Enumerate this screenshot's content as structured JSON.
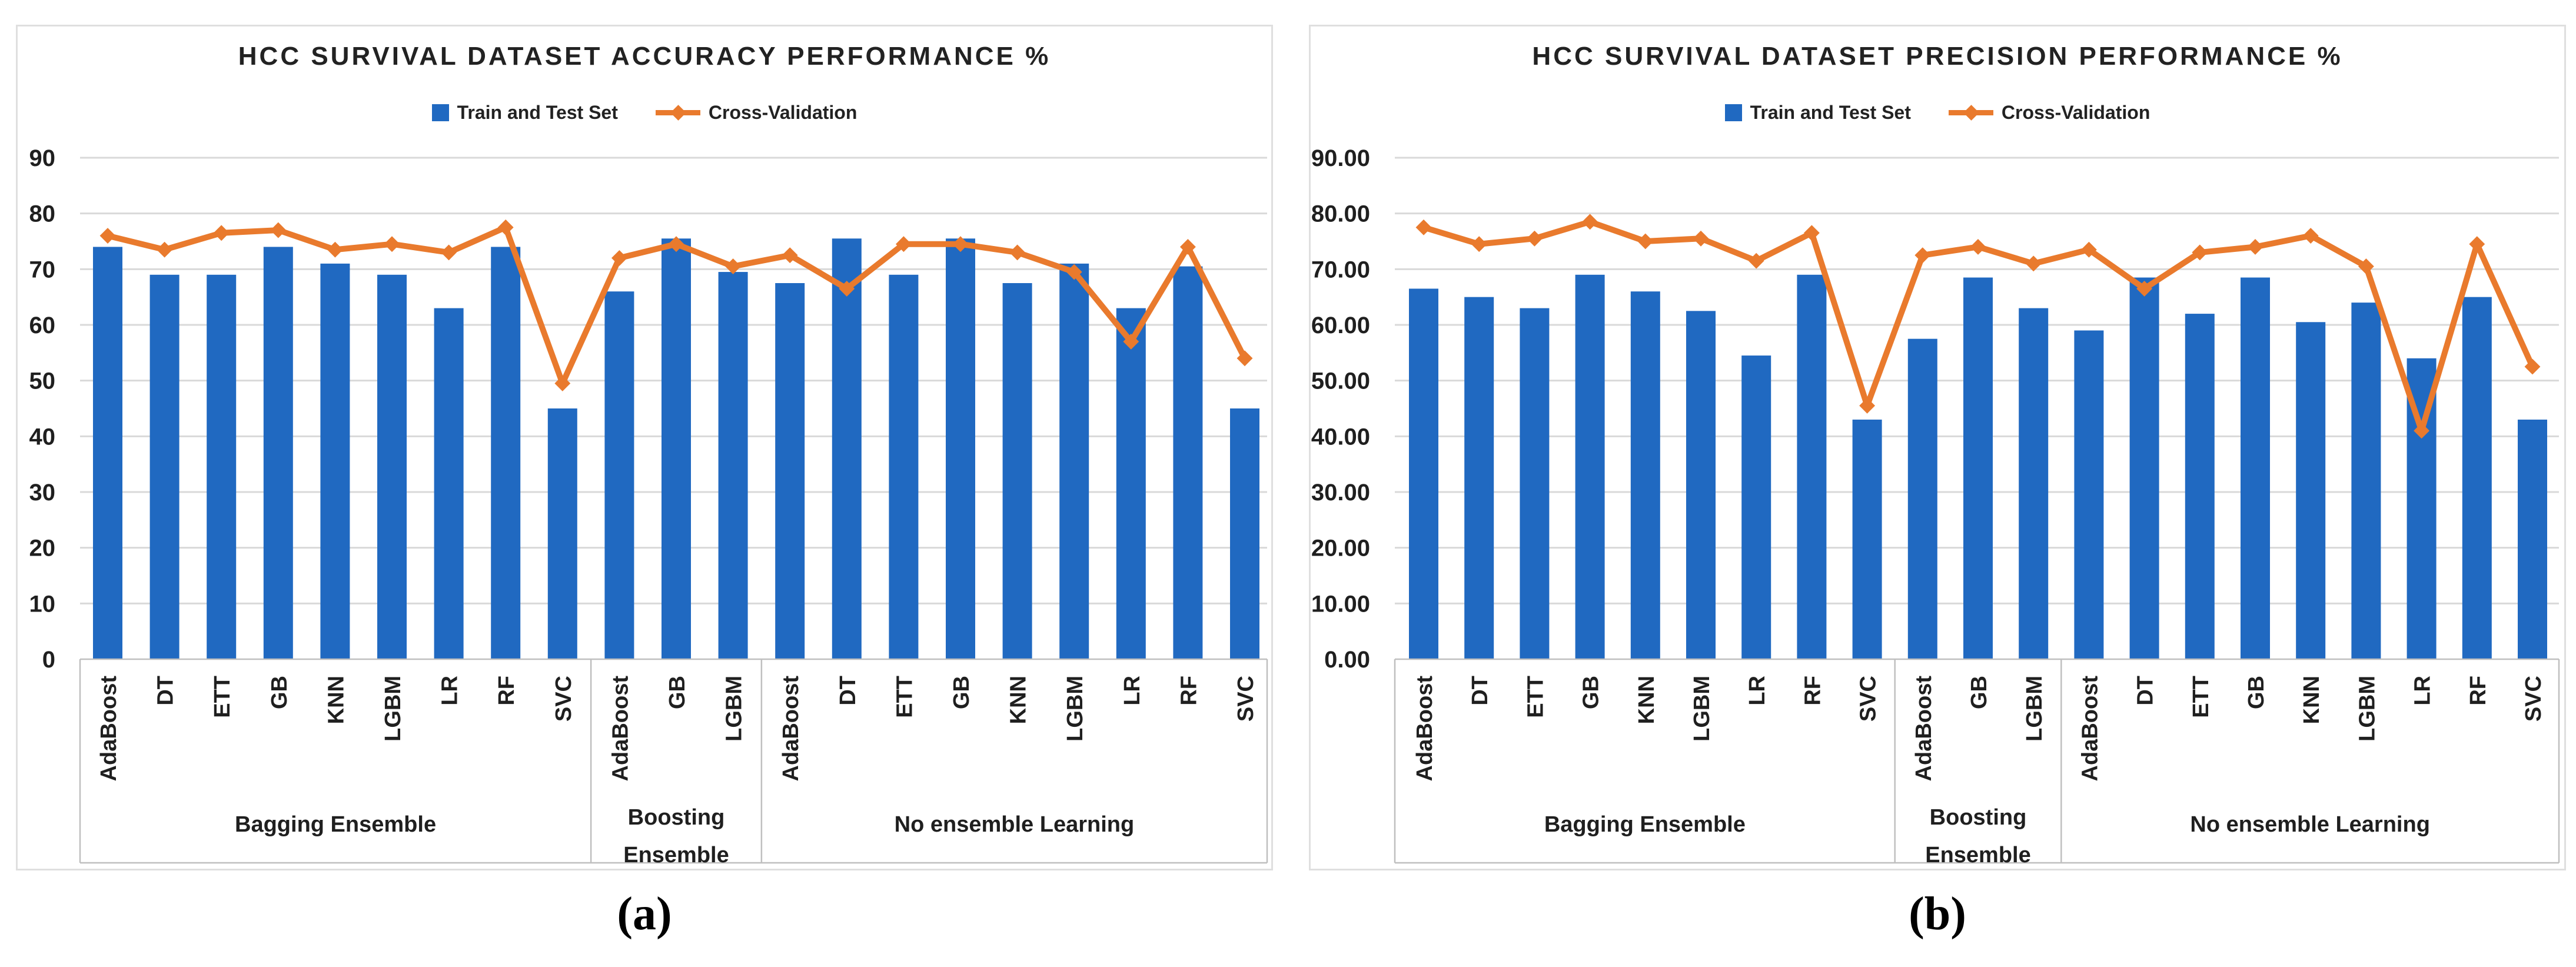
{
  "colors": {
    "bar": "#2069C1",
    "line": "#E97A2D",
    "grid": "#D9D9D9",
    "box_border": "#BFBFBF",
    "panel_border": "#DFDFDF",
    "text": "#1F1F1F"
  },
  "chart_data": [
    {
      "type": "bar+line",
      "title": "HCC SURVIVAL DATASET ACCURACY PERFORMANCE %",
      "caption": "(a)",
      "legend": [
        {
          "name": "Train and Test Set",
          "marker": "square"
        },
        {
          "name": "Cross-Validation",
          "marker": "line-diamond"
        }
      ],
      "y_axis": {
        "min": 0,
        "max": 90,
        "tick_values": [
          90,
          80,
          70,
          60,
          50,
          40,
          30,
          20,
          10,
          0
        ],
        "tick_labels": [
          "90",
          "80",
          "70",
          "60",
          "50",
          "40",
          "30",
          "20",
          "10",
          "0"
        ]
      },
      "groups": [
        {
          "label_lines": [
            "Bagging Ensemble"
          ],
          "categories": [
            "AdaBoost",
            "DT",
            "ETT",
            "GB",
            "KNN",
            "LGBM",
            "LR",
            "RF",
            "SVC"
          ],
          "train_test_bars": [
            74,
            69,
            69,
            74,
            71,
            69,
            63,
            74,
            45
          ],
          "cross_validation": [
            76,
            73.5,
            76.5,
            77,
            73.5,
            74.5,
            73,
            77.5,
            49.5
          ]
        },
        {
          "label_lines": [
            "Boosting",
            "Ensemble"
          ],
          "categories": [
            "AdaBoost",
            "GB",
            "LGBM"
          ],
          "train_test_bars": [
            66,
            75.5,
            69.5
          ],
          "cross_validation": [
            72,
            74.5,
            70.5
          ]
        },
        {
          "label_lines": [
            "No ensemble Learning"
          ],
          "categories": [
            "AdaBoost",
            "DT",
            "ETT",
            "GB",
            "KNN",
            "LGBM",
            "LR",
            "RF",
            "SVC"
          ],
          "train_test_bars": [
            67.5,
            75.5,
            69,
            75.5,
            67.5,
            71,
            63,
            70.5,
            45
          ],
          "cross_validation": [
            72.5,
            66.5,
            74.5,
            74.5,
            73,
            69.5,
            57,
            74,
            54
          ]
        }
      ]
    },
    {
      "type": "bar+line",
      "title": "HCC SURVIVAL DATASET PRECISION PERFORMANCE %",
      "caption": "(b)",
      "legend": [
        {
          "name": "Train and Test Set",
          "marker": "square"
        },
        {
          "name": "Cross-Validation",
          "marker": "line-diamond"
        }
      ],
      "y_axis": {
        "min": 0,
        "max": 90,
        "tick_values": [
          90,
          80,
          70,
          60,
          50,
          40,
          30,
          20,
          10,
          0
        ],
        "tick_labels": [
          "90.00",
          "80.00",
          "70.00",
          "60.00",
          "50.00",
          "40.00",
          "30.00",
          "20.00",
          "10.00",
          "0.00"
        ]
      },
      "groups": [
        {
          "label_lines": [
            "Bagging Ensemble"
          ],
          "categories": [
            "AdaBoost",
            "DT",
            "ETT",
            "GB",
            "KNN",
            "LGBM",
            "LR",
            "RF",
            "SVC"
          ],
          "train_test_bars": [
            66.5,
            65,
            63,
            69,
            66,
            62.5,
            54.5,
            69,
            43
          ],
          "cross_validation": [
            77.5,
            74.5,
            75.5,
            78.5,
            75,
            75.5,
            71.5,
            76.5,
            45.5
          ]
        },
        {
          "label_lines": [
            "Boosting",
            "Ensemble"
          ],
          "categories": [
            "AdaBoost",
            "GB",
            "LGBM"
          ],
          "train_test_bars": [
            57.5,
            68.5,
            63
          ],
          "cross_validation": [
            72.5,
            74,
            71
          ]
        },
        {
          "label_lines": [
            "No ensemble Learning"
          ],
          "categories": [
            "AdaBoost",
            "DT",
            "ETT",
            "GB",
            "KNN",
            "LGBM",
            "LR",
            "RF",
            "SVC"
          ],
          "train_test_bars": [
            59,
            68.5,
            62,
            68.5,
            60.5,
            64,
            54,
            65,
            43
          ],
          "cross_validation": [
            73.5,
            66.5,
            73,
            74,
            76,
            70.5,
            41,
            74.5,
            52.5
          ]
        }
      ]
    }
  ]
}
